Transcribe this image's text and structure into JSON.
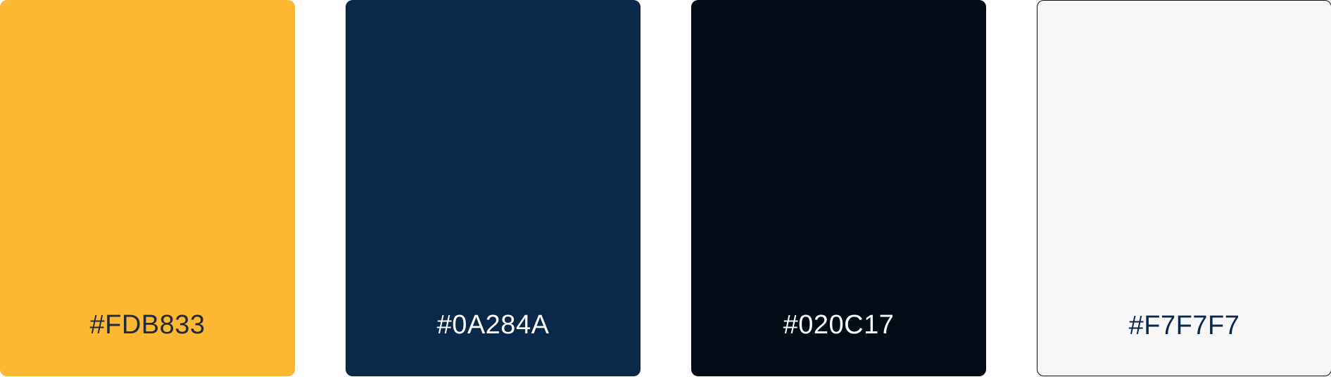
{
  "swatches": [
    {
      "hex": "#FDB833",
      "color": "#FDB833",
      "text_color": "#1F2A3A"
    },
    {
      "hex": "#0A284A",
      "color": "#0A284A",
      "text_color": "#FFFFFF"
    },
    {
      "hex": "#020C17",
      "color": "#020C17",
      "text_color": "#FFFFFF"
    },
    {
      "hex": "#F7F7F7",
      "color": "#F7F7F7",
      "text_color": "#0A284A"
    }
  ]
}
